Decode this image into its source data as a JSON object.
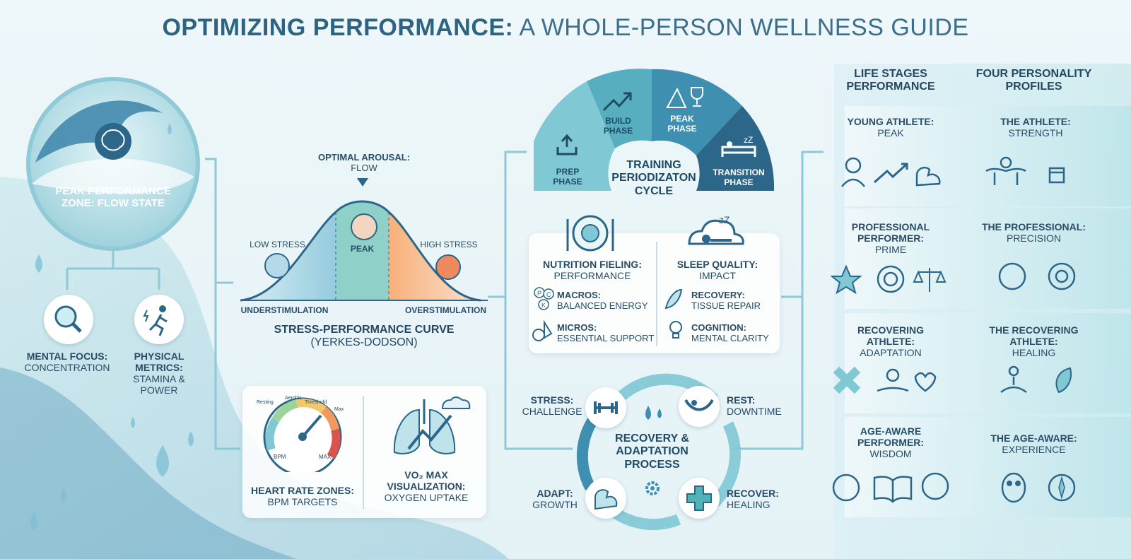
{
  "title": {
    "bold": "OPTIMIZING PERFORMANCE:",
    "rest": " A WHOLE-PERSON WELLNESS GUIDE"
  },
  "peak_zone": {
    "label": "PEAK PERFORMANCE ZONE: FLOW STATE",
    "focus": {
      "title": "MENTAL FOCUS:",
      "sub": "CONCENTRATION"
    },
    "physical": {
      "title": "PHYSICAL METRICS:",
      "sub": "STAMINA & POWER"
    }
  },
  "curve": {
    "optimal": {
      "title": "OPTIMAL AROUSAL:",
      "sub": "FLOW"
    },
    "low": "LOW STRESS",
    "peak": "PEAK",
    "high": "HIGH STRESS",
    "under": "UNDERSTIMULATION",
    "over": "OVERSTIMULATION",
    "title": "STRESS-PERFORMANCE CURVE",
    "subtitle": "(YERKES-DODSON)"
  },
  "gauges": {
    "heart": {
      "title": "HEART RATE ZONES:",
      "sub": "BPM TARGETS"
    },
    "zones": [
      "Resting",
      "Aerobic",
      "Threshold",
      "Max"
    ],
    "bpm": "BPM",
    "max": "MAX",
    "vo2": {
      "line1": "VO₂ MAX",
      "line2": "VISUALIZATION:",
      "sub": "OXYGEN UPTAKE"
    }
  },
  "periodization": {
    "center": "TRAINING PERIODIZATON CYCLE",
    "phases": [
      {
        "label": "PREP PHASE"
      },
      {
        "label": "BUILD PHASE"
      },
      {
        "label": "PEAK PHASE"
      },
      {
        "label": "TRANSITION PHASE"
      }
    ]
  },
  "nutrition": {
    "title": "NUTRITION FIELING:",
    "sub": "PERFORMANCE",
    "macros": {
      "title": "MACROS:",
      "sub": "BALANCED ENERGY"
    },
    "micros": {
      "title": "MICROS:",
      "sub": "ESSENTIAL SUPPORT"
    },
    "pck": [
      "P",
      "C",
      "K"
    ]
  },
  "sleep": {
    "title": "SLEEP QUALITY:",
    "sub": "IMPACT",
    "zz": "zZ",
    "recovery": {
      "title": "RECOVERY:",
      "sub": "TISSUE REPAIR"
    },
    "cognition": {
      "title": "COGNITION:",
      "sub": "MENTAL CLARITY"
    }
  },
  "recovery_cycle": {
    "center": "RECOVERY & ADAPTATION PROCESS",
    "stress": {
      "title": "STRESS:",
      "sub": "CHALLENGE"
    },
    "rest": {
      "title": "REST:",
      "sub": "DOWNTIME"
    },
    "adapt": {
      "title": "ADAPT:",
      "sub": "GROWTH"
    },
    "recover": {
      "title": "RECOVER:",
      "sub": "HEALING"
    }
  },
  "right": {
    "col1_header": "LIFE STAGES PERFORMANCE",
    "col2_header": "FOUR PERSONALITY PROFILES",
    "rows": [
      {
        "stage": {
          "title": "YOUNG ATHLETE:",
          "sub": "PEAK"
        },
        "profile": {
          "title": "THE ATHLETE:",
          "sub": "STRENGTH"
        }
      },
      {
        "stage": {
          "title": "PROFESSIONAL PERFORMER:",
          "sub": "PRIME"
        },
        "profile": {
          "title": "THE PROFESSIONAL:",
          "sub": "PRECISION"
        }
      },
      {
        "stage": {
          "title": "RECOVERING ATHLETE:",
          "sub": "ADAPTATION"
        },
        "profile": {
          "title": "THE RECOVERING ATHLETE:",
          "sub": "HEALING"
        }
      },
      {
        "stage": {
          "title": "AGE-AWARE PERFORMER:",
          "sub": "WISDOM"
        },
        "profile": {
          "title": "THE AGE-AWARE:",
          "sub": "EXPERIENCE"
        }
      }
    ]
  },
  "colors": {
    "teal": "#4fb3b7",
    "deep": "#2c6688",
    "panel": "#ffffff"
  }
}
